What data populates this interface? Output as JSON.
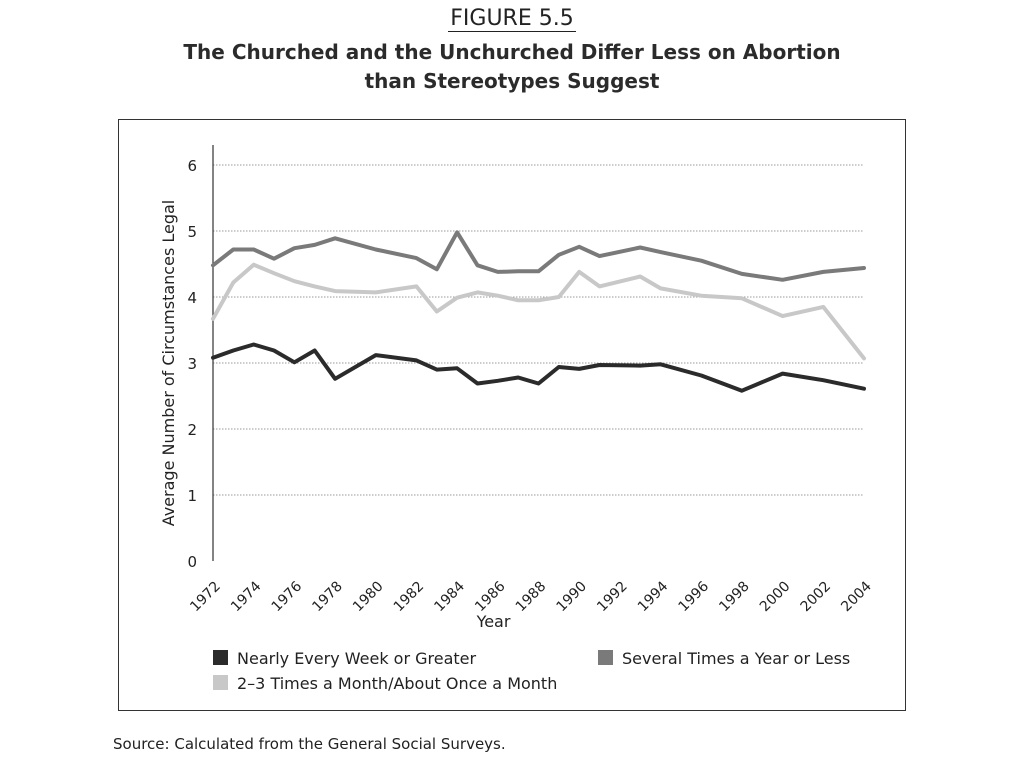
{
  "figure_label": "FIGURE 5.5",
  "title_line_1": "The Churched and the Unchurched Differ Less on Abortion",
  "title_line_2": "than Stereotypes Suggest",
  "source": "Source: Calculated from the General Social Surveys.",
  "chart_data": {
    "type": "line",
    "xlabel": "Year",
    "ylabel": "Average Number of Circumstances Legal",
    "ylim": [
      0,
      6
    ],
    "yticks": [
      0,
      1,
      2,
      3,
      4,
      5,
      6
    ],
    "xticks": [
      1972,
      1974,
      1976,
      1978,
      1980,
      1982,
      1984,
      1986,
      1988,
      1990,
      1992,
      1994,
      1996,
      1998,
      2000,
      2002,
      2004
    ],
    "grid": true,
    "legend_position": "bottom",
    "series": [
      {
        "name": "Nearly Every Week or Greater",
        "color": "#2b2b2b",
        "x": [
          1972,
          1973,
          1974,
          1975,
          1976,
          1977,
          1978,
          1980,
          1982,
          1983,
          1984,
          1985,
          1986,
          1987,
          1988,
          1989,
          1990,
          1991,
          1993,
          1994,
          1996,
          1998,
          2000,
          2002,
          2004
        ],
        "y": [
          3.08,
          3.19,
          3.28,
          3.19,
          3.01,
          3.19,
          2.76,
          3.12,
          3.04,
          2.9,
          2.92,
          2.69,
          2.73,
          2.78,
          2.69,
          2.94,
          2.91,
          2.97,
          2.96,
          2.98,
          2.81,
          2.58,
          2.84,
          2.74,
          2.61
        ]
      },
      {
        "name": "2–3 Times a Month/About Once a Month",
        "color": "#c8c8c8",
        "x": [
          1972,
          1973,
          1974,
          1975,
          1976,
          1977,
          1978,
          1980,
          1982,
          1983,
          1984,
          1985,
          1986,
          1987,
          1988,
          1989,
          1990,
          1991,
          1993,
          1994,
          1996,
          1998,
          2000,
          2002,
          2004
        ],
        "y": [
          3.67,
          4.22,
          4.49,
          4.36,
          4.24,
          4.16,
          4.09,
          4.07,
          4.16,
          3.78,
          3.99,
          4.07,
          4.02,
          3.95,
          3.95,
          4.0,
          4.38,
          4.16,
          4.31,
          4.13,
          4.02,
          3.98,
          3.71,
          3.85,
          3.07
        ]
      },
      {
        "name": "Several Times a Year or Less",
        "color": "#7a7a7a",
        "x": [
          1972,
          1973,
          1974,
          1975,
          1976,
          1977,
          1978,
          1980,
          1982,
          1983,
          1984,
          1985,
          1986,
          1987,
          1988,
          1989,
          1990,
          1991,
          1993,
          1994,
          1996,
          1998,
          2000,
          2002,
          2004
        ],
        "y": [
          4.48,
          4.72,
          4.72,
          4.58,
          4.74,
          4.79,
          4.89,
          4.72,
          4.59,
          4.42,
          4.98,
          4.48,
          4.38,
          4.39,
          4.39,
          4.64,
          4.76,
          4.62,
          4.75,
          4.68,
          4.55,
          4.35,
          4.26,
          4.38,
          4.44
        ]
      }
    ]
  }
}
